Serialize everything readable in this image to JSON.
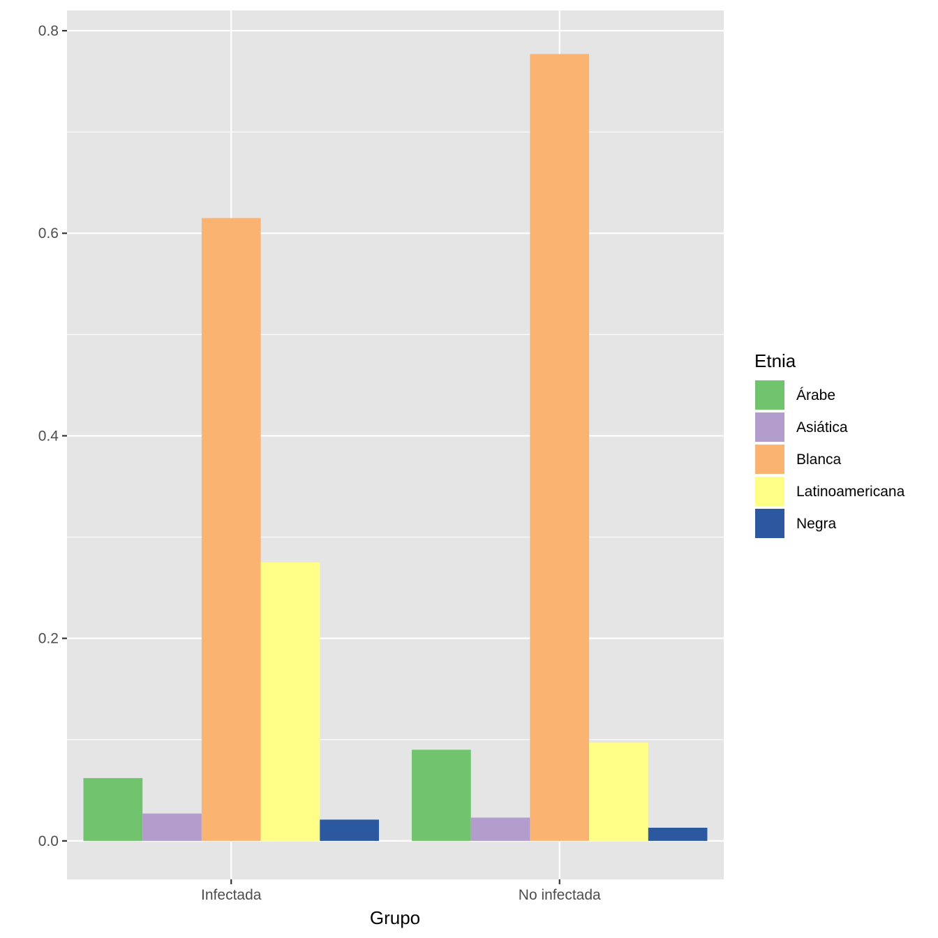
{
  "chart_data": {
    "type": "bar",
    "xlabel": "Grupo",
    "ylabel": "",
    "categories": [
      "Infectada",
      "No infectada"
    ],
    "series": [
      {
        "name": "Árabe",
        "color": "#71C46D",
        "values": [
          0.062,
          0.09
        ]
      },
      {
        "name": "Asiática",
        "color": "#B29DCC",
        "values": [
          0.027,
          0.023
        ]
      },
      {
        "name": "Blanca",
        "color": "#FBB372",
        "values": [
          0.615,
          0.777
        ]
      },
      {
        "name": "Latinoamericana",
        "color": "#FFFF88",
        "values": [
          0.275,
          0.097
        ]
      },
      {
        "name": "Negra",
        "color": "#2C58A0",
        "values": [
          0.021,
          0.013
        ]
      }
    ],
    "ylim": [
      -0.038,
      0.82
    ],
    "yticks": [
      0.0,
      0.2,
      0.4,
      0.6,
      0.8
    ],
    "ytick_labels": [
      "0.0",
      "0.2",
      "0.4",
      "0.6",
      "0.8"
    ],
    "grid": true,
    "panel_background": "#E5E5E5",
    "legend": {
      "title": "Etnia",
      "position": "right"
    }
  }
}
